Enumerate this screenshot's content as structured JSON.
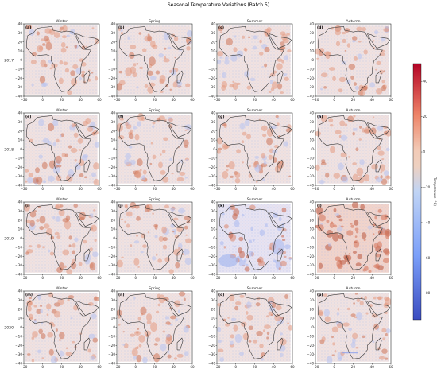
{
  "chart_data": {
    "type": "heatmap",
    "title": "Seasonal Temperature Variations (Batch 5)",
    "seasons": [
      "Winter",
      "Spring",
      "Summer",
      "Autumn"
    ],
    "years": [
      "2017",
      "2018",
      "2019",
      "2020"
    ],
    "panel_labels": [
      "(a)",
      "(b)",
      "(c)",
      "(d)",
      "(e)",
      "(f)",
      "(g)",
      "(h)",
      "(i)",
      "(j)",
      "(k)",
      "(l)",
      "(m)",
      "(n)",
      "(o)",
      "(p)"
    ],
    "xlim": [
      -20,
      60
    ],
    "ylim": [
      -40,
      40
    ],
    "xticks": [
      -20,
      0,
      20,
      40,
      60
    ],
    "yticks": [
      -40,
      -30,
      -20,
      -10,
      0,
      10,
      20,
      30,
      40
    ],
    "xticklabels": [
      "−20",
      "0",
      "20",
      "40",
      "60"
    ],
    "yticklabels": [
      "−40",
      "−30",
      "−20",
      "−10",
      "0",
      "10",
      "20",
      "30",
      "40"
    ],
    "colorbar": {
      "label": "Temperature (°C)",
      "range": [
        -95,
        50
      ],
      "ticks": [
        -80,
        -60,
        -40,
        -20,
        0,
        20,
        40
      ],
      "ticklabels": [
        "−80",
        "−60",
        "−40",
        "−20",
        "0",
        "20",
        "40"
      ],
      "colormap": "coolwarm"
    },
    "panel_style": {
      "2019-Summer": "cooler",
      "2019-Autumn": "warmer"
    }
  }
}
